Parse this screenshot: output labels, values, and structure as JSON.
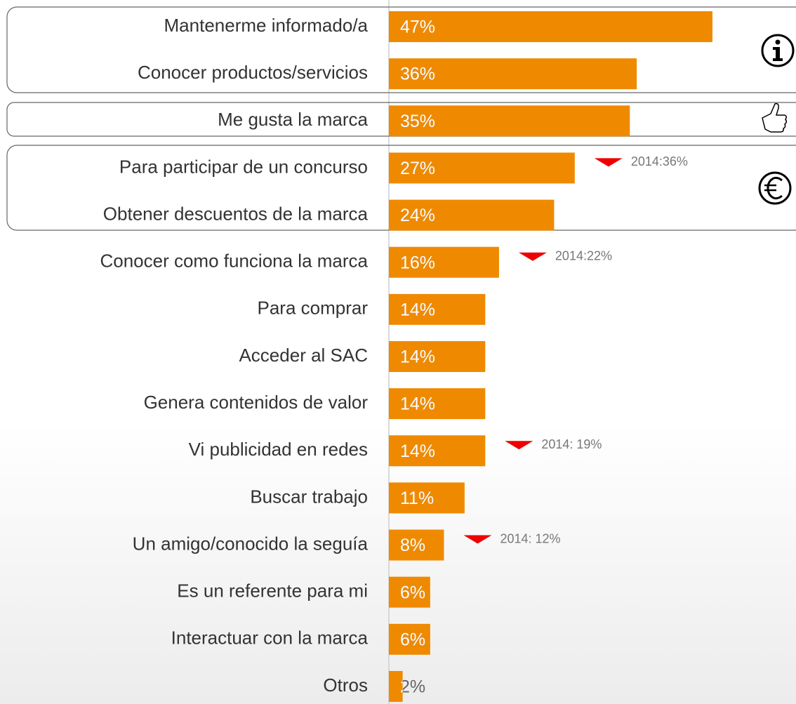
{
  "chart_data": {
    "type": "bar",
    "orientation": "horizontal",
    "categories": [
      "Mantenerme informado/a",
      "Conocer productos/servicios",
      "Me gusta la marca",
      "Para participar de un concurso",
      "Obtener descuentos de la marca",
      "Conocer como funciona la marca",
      "Para comprar",
      "Acceder al SAC",
      "Genera contenidos de valor",
      "Vi publicidad en redes",
      "Buscar trabajo",
      "Un amigo/conocido la seguía",
      "Es un referente para mi",
      "Interactuar con la marca",
      "Otros"
    ],
    "values": [
      47,
      36,
      35,
      27,
      24,
      16,
      14,
      14,
      14,
      14,
      11,
      8,
      6,
      6,
      2
    ],
    "value_labels": [
      "47%",
      "36%",
      "35%",
      "27%",
      "24%",
      "16%",
      "14%",
      "14%",
      "14%",
      "14%",
      "11%",
      "8%",
      "6%",
      "6%",
      "2%"
    ],
    "annotations": [
      null,
      null,
      null,
      "2014:36%",
      null,
      "2014:22%",
      null,
      null,
      null,
      "2014: 19%",
      null,
      "2014: 12%",
      null,
      null,
      null
    ],
    "color": "#ef8a00"
  }
}
